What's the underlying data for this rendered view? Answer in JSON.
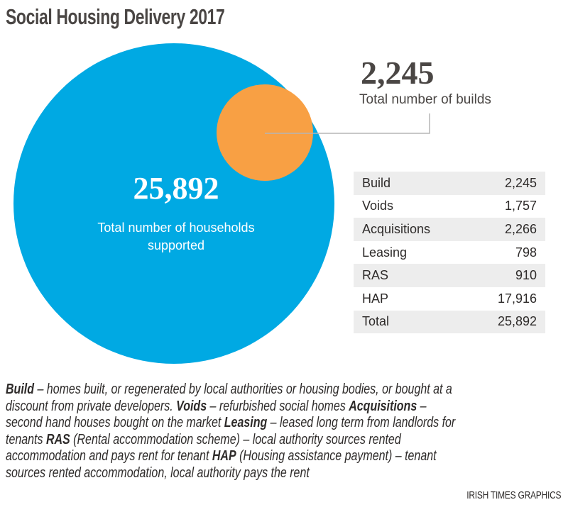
{
  "title": "Social Housing Delivery 2017",
  "colors": {
    "households": "#00a9e3",
    "builds": "#f8a044",
    "leader": "#b5b5b5"
  },
  "chart_data": {
    "type": "table",
    "title": "Social Housing Delivery 2017",
    "bubbles": [
      {
        "name": "households",
        "value": 25892,
        "value_label": "25,892",
        "label": "Total number of households supported"
      },
      {
        "name": "builds",
        "value": 2245,
        "value_label": "2,245",
        "label": "Total number of builds"
      }
    ],
    "columns": [
      "Category",
      "Number"
    ],
    "rows": [
      {
        "label": "Build",
        "value": "2,245"
      },
      {
        "label": "Voids",
        "value": "1,757"
      },
      {
        "label": "Acquisitions",
        "value": "2,266"
      },
      {
        "label": "Leasing",
        "value": "798"
      },
      {
        "label": "RAS",
        "value": "910"
      },
      {
        "label": "HAP",
        "value": "17,916"
      },
      {
        "label": "Total",
        "value": "25,892"
      }
    ]
  },
  "footnote": [
    [
      {
        "b": "Build"
      },
      {
        "t": " – homes built, or regenerated by local authorities or housing bodies, or bought at a"
      }
    ],
    [
      {
        "t": "discount from private developers. "
      },
      {
        "b": "Voids"
      },
      {
        "t": " – refurbished social homes "
      },
      {
        "b": "Acquisitions"
      },
      {
        "t": " –"
      }
    ],
    [
      {
        "t": "second hand houses bought on the market "
      },
      {
        "b": "Leasing"
      },
      {
        "t": " – leased long term from landlords for"
      }
    ],
    [
      {
        "t": "tenants "
      },
      {
        "b": "RAS"
      },
      {
        "t": " (Rental accommodation scheme) – local authority sources rented"
      }
    ],
    [
      {
        "t": "accommodation and pays rent for tenant "
      },
      {
        "b": "HAP"
      },
      {
        "t": " (Housing assistance payment)  – tenant"
      }
    ],
    [
      {
        "t": "sources rented accommodation, local authority pays the rent"
      }
    ]
  ],
  "credit": "IRISH TIMES GRAPHICS"
}
